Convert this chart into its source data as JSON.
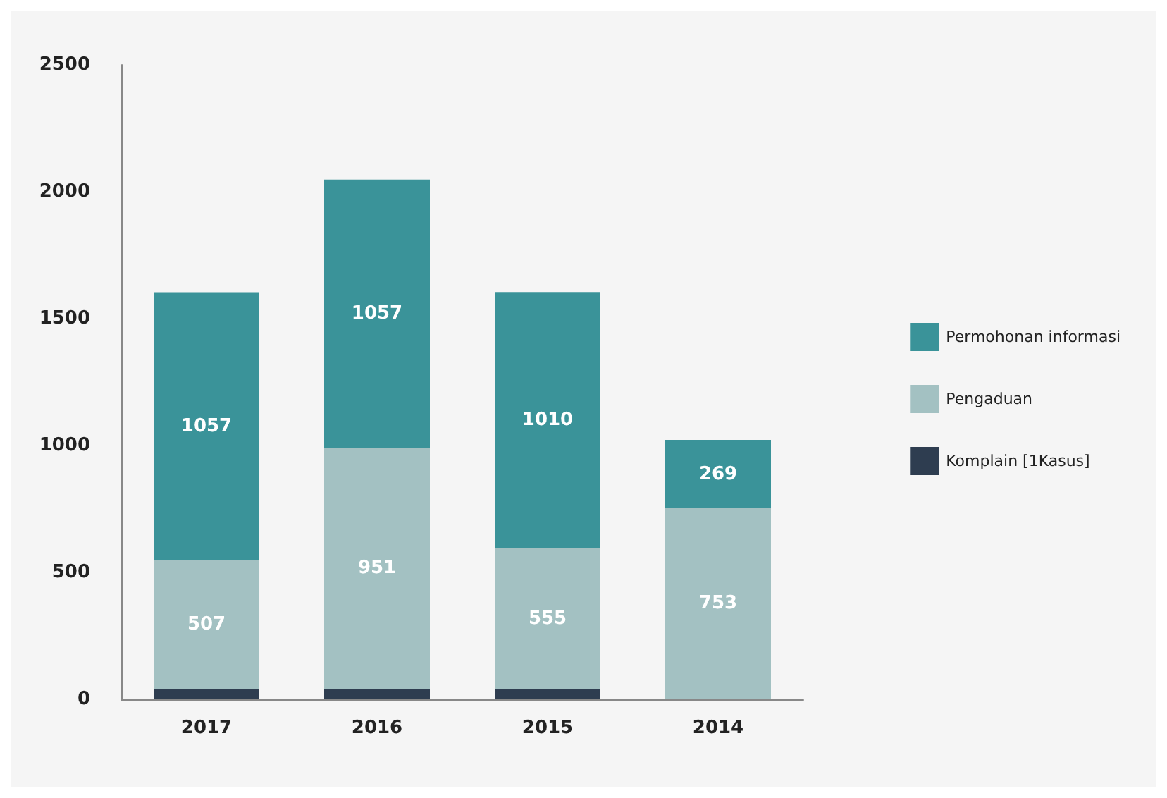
{
  "chart_data": {
    "type": "bar",
    "stacked": true,
    "categories": [
      "2017",
      "2016",
      "2015",
      "2014"
    ],
    "series": [
      {
        "name": "Komplain [1Kasus]",
        "color": "#2e3d50",
        "values": [
          40,
          40,
          40,
          null
        ]
      },
      {
        "name": "Pengaduan",
        "color": "#a3c1c2",
        "values": [
          507,
          951,
          555,
          753
        ],
        "value_labels": [
          "507",
          "951",
          "555",
          "753"
        ]
      },
      {
        "name": "Permohonan informasi",
        "color": "#3a9399",
        "values": [
          1057,
          1057,
          1010,
          269
        ],
        "value_labels": [
          "1057",
          "1057",
          "1010",
          "269"
        ]
      }
    ],
    "ylim": [
      0,
      2500
    ],
    "yticks": [
      0,
      500,
      1000,
      1500,
      2000,
      2500
    ],
    "grid": false,
    "legend": "right"
  }
}
